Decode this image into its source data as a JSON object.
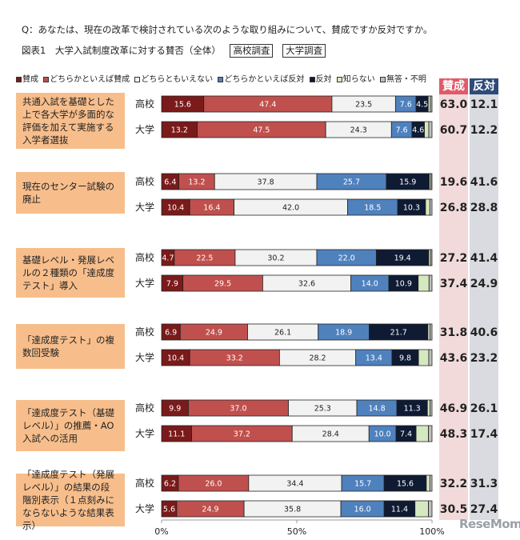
{
  "header": {
    "question": "Q：あなたは、現在の改革で検討されている次のような取り組みについて、賛成ですか反対ですか。",
    "figure_title": "図表1　大学入試制度改革に対する賛否（全体）",
    "tag_hs": "高校調査",
    "tag_univ": "大学調査"
  },
  "legend": [
    {
      "label": "賛成",
      "color": "#7b1a1a"
    },
    {
      "label": "どちらかといえば賛成",
      "color": "#c0504d"
    },
    {
      "label": "どちらともいえない",
      "color": "#f2f2f2"
    },
    {
      "label": "どちらかといえば反対",
      "color": "#4f81bd"
    },
    {
      "label": "反対",
      "color": "#0f1a33"
    },
    {
      "label": "知らない",
      "color": "#d6e8c0"
    },
    {
      "label": "無答・不明",
      "color": "#bfbfbf"
    }
  ],
  "columns": {
    "agree": "賛成",
    "oppose": "反対",
    "agree_color": "#e05a6a",
    "oppose_color": "#2f4a7a"
  },
  "watermark": "ReseMom",
  "chart_data": {
    "type": "bar",
    "stacked": true,
    "orientation": "horizontal",
    "xlim": [
      0,
      100
    ],
    "xticks": [
      "0%",
      "50%",
      "100%"
    ],
    "segment_colors": [
      "#7b1a1a",
      "#c0504d",
      "#f2f2f2",
      "#4f81bd",
      "#0f1a33",
      "#d6e8c0",
      "#bfbfbf"
    ],
    "groups": [
      {
        "question": "共通入試を基礎とした上で各大学が多面的な評価を加えて実施する入学者選抜",
        "rows": [
          {
            "label": "高校",
            "values": [
              15.6,
              47.4,
              23.5,
              7.6,
              4.5,
              0.8,
              0.6
            ],
            "agree": "63.0",
            "oppose": "12.1"
          },
          {
            "label": "大学",
            "values": [
              13.2,
              47.5,
              24.3,
              7.6,
              4.6,
              1.6,
              1.2
            ],
            "agree": "60.7",
            "oppose": "12.2"
          }
        ]
      },
      {
        "question": "現在のセンター試験の廃止",
        "rows": [
          {
            "label": "高校",
            "values": [
              6.4,
              13.2,
              37.8,
              25.7,
              15.9,
              0.6,
              0.4
            ],
            "agree": "19.6",
            "oppose": "41.6"
          },
          {
            "label": "大学",
            "values": [
              10.4,
              16.4,
              42.0,
              18.5,
              10.3,
              1.6,
              0.8
            ],
            "agree": "26.8",
            "oppose": "28.8"
          }
        ]
      },
      {
        "question": "基礎レベル・発展レベルの２種類の「達成度テスト」導入",
        "rows": [
          {
            "label": "高校",
            "values": [
              4.7,
              22.5,
              30.2,
              22.0,
              19.4,
              0.7,
              0.5
            ],
            "agree": "27.2",
            "oppose": "41.4"
          },
          {
            "label": "大学",
            "values": [
              7.9,
              29.5,
              32.6,
              14.0,
              10.9,
              4.0,
              1.1
            ],
            "agree": "37.4",
            "oppose": "24.9"
          }
        ]
      },
      {
        "question": "「達成度テスト」の複数回受験",
        "rows": [
          {
            "label": "高校",
            "values": [
              6.9,
              24.9,
              26.1,
              18.9,
              21.7,
              0.8,
              0.7
            ],
            "agree": "31.8",
            "oppose": "40.6"
          },
          {
            "label": "大学",
            "values": [
              10.4,
              33.2,
              28.2,
              13.4,
              9.8,
              3.8,
              1.2
            ],
            "agree": "43.6",
            "oppose": "23.2"
          }
        ]
      },
      {
        "question": "「達成度テスト（基礎レベル）」の推薦・AO入試への活用",
        "rows": [
          {
            "label": "高校",
            "values": [
              9.9,
              37.0,
              25.3,
              14.8,
              11.3,
              1.0,
              0.7
            ],
            "agree": "46.9",
            "oppose": "26.1"
          },
          {
            "label": "大学",
            "values": [
              11.1,
              37.2,
              28.4,
              10.0,
              7.4,
              4.6,
              1.3
            ],
            "agree": "48.3",
            "oppose": "17.4"
          }
        ]
      },
      {
        "question": "「達成度テスト（発展レベル）」の結果の段階別表示（１点刻みにならないような結果表示）",
        "rows": [
          {
            "label": "高校",
            "values": [
              6.2,
              26.0,
              34.4,
              15.7,
              15.6,
              1.3,
              0.8
            ],
            "agree": "32.2",
            "oppose": "31.3"
          },
          {
            "label": "大学",
            "values": [
              5.6,
              24.9,
              35.8,
              16.0,
              11.4,
              5.0,
              1.3
            ],
            "agree": "30.5",
            "oppose": "27.4"
          }
        ]
      }
    ]
  }
}
